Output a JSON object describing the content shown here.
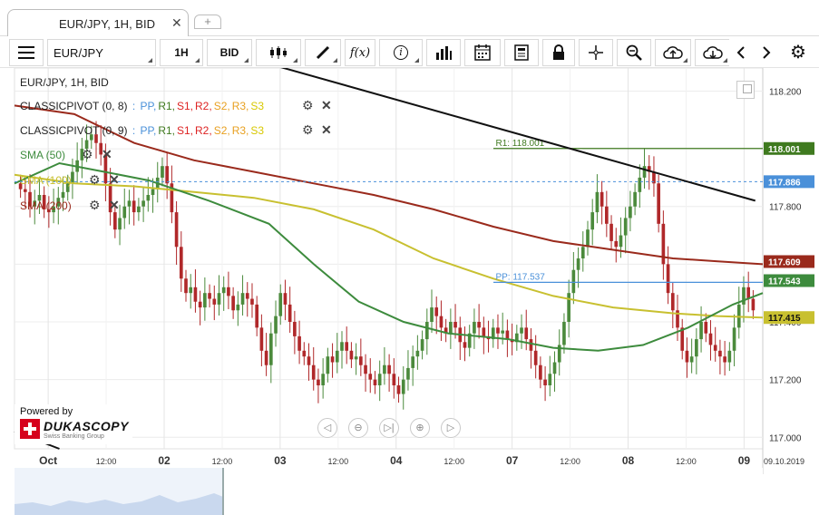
{
  "tab": {
    "title": "EUR/JPY, 1H, BID",
    "close": "✕",
    "add": "+"
  },
  "toolbar": {
    "instrument": "EUR/JPY",
    "period": "1H",
    "side": "BID",
    "fx_label": "f(x)",
    "info_label": "i"
  },
  "legend": {
    "title": "EUR/JPY, 1H, BID",
    "pivot1": {
      "name": "CLASSICPIVOT (0, 8)",
      "levels": [
        "PP,",
        "R1,",
        "S1,",
        "R2,",
        "S2,",
        "R3,",
        "S3"
      ]
    },
    "pivot2": {
      "name": "CLASSICPIVOT (0, 9)",
      "levels": [
        "PP,",
        "R1,",
        "S1,",
        "R2,",
        "S2,",
        "R3,",
        "S3"
      ]
    },
    "sma50": "SMA (50)",
    "sma100": "SMA (100)",
    "sma200": "SMA (200)",
    "gear": "⚙",
    "close": "✕"
  },
  "powered": {
    "text": "Powered by",
    "brand": "DUKASCOPY",
    "tagline": "Swiss Banking Group"
  },
  "nav_icons": [
    "◁",
    "⊖",
    "▷|",
    "⊕",
    "▷"
  ],
  "colors": {
    "bull": "#4b8a3c",
    "bear": "#b0282a",
    "sma50": "#3d8b3d",
    "sma100": "#c8c030",
    "sma200": "#9a2a1c",
    "pivot": "#4a90d9",
    "r1": "#3f7a1f",
    "trend": "#111111",
    "s1": "#d22",
    "r2": "#d22",
    "s2": "#e8a020",
    "r3": "#e8a020",
    "s3": "#d8c800"
  },
  "chart_data": {
    "type": "candlestick",
    "instrument": "EUR/JPY",
    "timeframe": "1H",
    "side": "BID",
    "ylim": [
      116.96,
      118.28
    ],
    "y_ticks": [
      "118.200",
      "118.000",
      "117.800",
      "117.600",
      "117.400",
      "117.200",
      "117.000"
    ],
    "x_ticks": [
      "Oct",
      "12:00",
      "02",
      "12:00",
      "03",
      "12:00",
      "04",
      "12:00",
      "07",
      "12:00",
      "08",
      "12:00",
      "09"
    ],
    "x_end_label": "09.10.2019",
    "levels": [
      {
        "name": "R1",
        "label": "R1: 118.001",
        "value": 118.001,
        "box": "118.001",
        "color": "r1"
      },
      {
        "name": "PP",
        "label": "PP: 117.537",
        "value": 117.537,
        "box": "",
        "color": "pivot"
      }
    ],
    "price_boxes": [
      {
        "label": "118.001",
        "value": 118.001,
        "color": "r1"
      },
      {
        "label": "117.886",
        "value": 117.886,
        "color": "pivot"
      },
      {
        "label": "117.609",
        "value": 117.609,
        "color": "sma200"
      },
      {
        "label": "117.543",
        "value": 117.543,
        "color": "sma50"
      },
      {
        "label": "117.415",
        "value": 117.415,
        "color": "sma100"
      }
    ],
    "trendline": {
      "from": {
        "x": 0.305,
        "y": 118.32
      },
      "to": {
        "x": 0.99,
        "y": 117.82
      }
    },
    "sma200": [
      [
        0,
        118.15
      ],
      [
        0.08,
        118.12
      ],
      [
        0.16,
        118.02
      ],
      [
        0.24,
        117.96
      ],
      [
        0.32,
        117.92
      ],
      [
        0.4,
        117.88
      ],
      [
        0.48,
        117.84
      ],
      [
        0.56,
        117.79
      ],
      [
        0.64,
        117.73
      ],
      [
        0.72,
        117.68
      ],
      [
        0.8,
        117.65
      ],
      [
        0.88,
        117.62
      ],
      [
        0.94,
        117.61
      ],
      [
        1.0,
        117.6
      ]
    ],
    "sma100": [
      [
        0,
        117.91
      ],
      [
        0.08,
        117.88
      ],
      [
        0.16,
        117.87
      ],
      [
        0.24,
        117.85
      ],
      [
        0.32,
        117.83
      ],
      [
        0.4,
        117.79
      ],
      [
        0.48,
        117.72
      ],
      [
        0.56,
        117.62
      ],
      [
        0.64,
        117.55
      ],
      [
        0.72,
        117.49
      ],
      [
        0.8,
        117.45
      ],
      [
        0.88,
        117.43
      ],
      [
        0.94,
        117.42
      ],
      [
        1.0,
        117.415
      ]
    ],
    "sma50": [
      [
        0,
        117.88
      ],
      [
        0.06,
        117.95
      ],
      [
        0.12,
        117.92
      ],
      [
        0.18,
        117.89
      ],
      [
        0.26,
        117.82
      ],
      [
        0.34,
        117.74
      ],
      [
        0.4,
        117.6
      ],
      [
        0.46,
        117.47
      ],
      [
        0.52,
        117.4
      ],
      [
        0.58,
        117.36
      ],
      [
        0.66,
        117.34
      ],
      [
        0.72,
        117.31
      ],
      [
        0.78,
        117.3
      ],
      [
        0.84,
        117.32
      ],
      [
        0.9,
        117.38
      ],
      [
        0.96,
        117.46
      ],
      [
        1.0,
        117.5
      ]
    ],
    "closes": [
      117.86,
      117.85,
      117.8,
      117.82,
      117.84,
      117.79,
      117.78,
      117.8,
      117.83,
      117.85,
      117.88,
      117.92,
      117.96,
      118.0,
      118.03,
      118.05,
      118.02,
      117.98,
      117.88,
      117.78,
      117.72,
      117.76,
      117.8,
      117.82,
      117.78,
      117.8,
      117.82,
      117.84,
      117.86,
      117.9,
      117.94,
      117.88,
      117.78,
      117.66,
      117.55,
      117.5,
      117.52,
      117.47,
      117.45,
      117.5,
      117.48,
      117.46,
      117.5,
      117.52,
      117.49,
      117.44,
      117.46,
      117.5,
      117.48,
      117.46,
      117.38,
      117.3,
      117.25,
      117.36,
      117.42,
      117.5,
      117.46,
      117.4,
      117.35,
      117.3,
      117.28,
      117.25,
      117.2,
      117.18,
      117.22,
      117.28,
      117.26,
      117.3,
      117.33,
      117.3,
      117.27,
      117.28,
      117.25,
      117.22,
      117.2,
      117.18,
      117.22,
      117.25,
      117.22,
      117.18,
      117.15,
      117.2,
      117.24,
      117.28,
      117.3,
      117.34,
      117.4,
      117.45,
      117.42,
      117.38,
      117.36,
      117.4,
      117.38,
      117.33,
      117.31,
      117.36,
      117.4,
      117.38,
      117.35,
      117.34,
      117.38,
      117.36,
      117.37,
      117.34,
      117.33,
      117.36,
      117.38,
      117.34,
      117.3,
      117.25,
      117.2,
      117.18,
      117.22,
      117.26,
      117.32,
      117.4,
      117.5,
      117.58,
      117.62,
      117.66,
      117.72,
      117.78,
      117.85,
      117.8,
      117.74,
      117.68,
      117.66,
      117.7,
      117.76,
      117.8,
      117.85,
      117.9,
      117.94,
      117.92,
      117.88,
      117.74,
      117.6,
      117.5,
      117.44,
      117.38,
      117.3,
      117.26,
      117.28,
      117.34,
      117.4,
      117.36,
      117.32,
      117.3,
      117.28,
      117.26,
      117.3,
      117.38,
      117.46,
      117.52,
      117.48,
      117.44
    ]
  }
}
